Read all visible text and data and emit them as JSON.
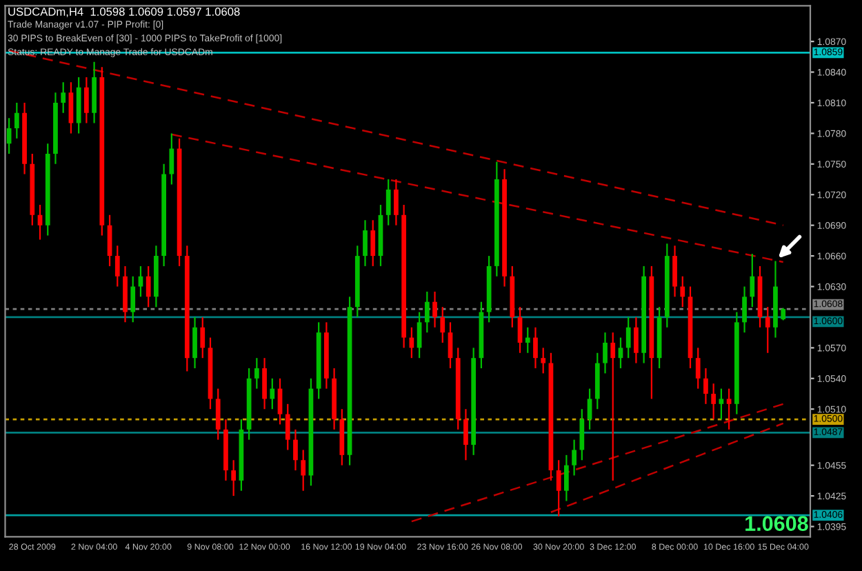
{
  "chart_data": {
    "type": "candlestick",
    "title": "USDCADm,H4  1.0598 1.0609 1.0597 1.0608",
    "annotations": [
      "Trade Manager v1.07 - PIP Profit: [0]",
      "30 PIPS to BreakEven of [30] - 1000 PIPS to TakeProfit of [1000]",
      "Status: READY to Manage Trade for USDCADm",
      "1.0608"
    ],
    "categories": [
      null,
      null,
      null,
      "28 Oct 2009",
      null,
      null,
      null,
      null,
      null,
      null,
      null,
      "2 Nov 04:00",
      null,
      null,
      null,
      null,
      null,
      null,
      "4 Nov 20:00",
      null,
      null,
      null,
      null,
      null,
      null,
      null,
      "9 Nov 08:00",
      null,
      null,
      null,
      null,
      null,
      null,
      "12 Nov 00:00",
      null,
      null,
      null,
      null,
      null,
      null,
      null,
      "16 Nov 12:00",
      null,
      null,
      null,
      null,
      null,
      null,
      "19 Nov 04:00",
      null,
      null,
      null,
      null,
      null,
      null,
      null,
      "23 Nov 16:00",
      null,
      null,
      null,
      null,
      null,
      null,
      "26 Nov 08:00",
      null,
      null,
      null,
      null,
      null,
      null,
      null,
      "30 Nov 20:00",
      null,
      null,
      null,
      null,
      null,
      null,
      "3 Dec 12:00",
      null,
      null,
      null,
      null,
      null,
      null,
      null,
      "8 Dec 00:00",
      null,
      null,
      null,
      null,
      null,
      null,
      "10 Dec 16:00",
      null,
      null,
      null,
      null,
      null,
      null,
      "15 Dec 04:00"
    ],
    "ohlc": [
      [
        1.077,
        1.0795,
        1.076,
        1.0785
      ],
      [
        1.0785,
        1.081,
        1.0775,
        1.08
      ],
      [
        1.08,
        1.081,
        1.074,
        1.075
      ],
      [
        1.075,
        1.076,
        1.069,
        1.07
      ],
      [
        1.07,
        1.071,
        1.0676,
        1.069
      ],
      [
        1.069,
        1.077,
        1.068,
        1.076
      ],
      [
        1.076,
        1.082,
        1.075,
        1.081
      ],
      [
        1.081,
        1.083,
        1.08,
        1.082
      ],
      [
        1.082,
        1.083,
        1.078,
        1.079
      ],
      [
        1.079,
        1.0835,
        1.078,
        1.0825
      ],
      [
        1.0825,
        1.0835,
        1.079,
        1.08
      ],
      [
        1.08,
        1.085,
        1.079,
        1.0835
      ],
      [
        1.0835,
        1.0845,
        1.068,
        1.069
      ],
      [
        1.069,
        1.07,
        1.065,
        1.066
      ],
      [
        1.066,
        1.067,
        1.063,
        1.064
      ],
      [
        1.064,
        1.065,
        1.0595,
        1.0605
      ],
      [
        1.0605,
        1.064,
        1.0595,
        1.063
      ],
      [
        1.063,
        1.065,
        1.062,
        1.064
      ],
      [
        1.064,
        1.065,
        1.061,
        1.062
      ],
      [
        1.062,
        1.067,
        1.061,
        1.066
      ],
      [
        1.066,
        1.075,
        1.065,
        1.074
      ],
      [
        1.074,
        1.078,
        1.073,
        1.0765
      ],
      [
        1.0765,
        1.0775,
        1.065,
        1.066
      ],
      [
        1.066,
        1.067,
        1.0547,
        1.056
      ],
      [
        1.056,
        1.06,
        1.055,
        1.059
      ],
      [
        1.059,
        1.06,
        1.056,
        1.057
      ],
      [
        1.057,
        1.058,
        1.051,
        1.052
      ],
      [
        1.052,
        1.053,
        1.048,
        1.049
      ],
      [
        1.049,
        1.05,
        1.044,
        1.045
      ],
      [
        1.045,
        1.046,
        1.0425,
        1.044
      ],
      [
        1.044,
        1.05,
        1.043,
        1.049
      ],
      [
        1.049,
        1.055,
        1.048,
        1.054
      ],
      [
        1.054,
        1.056,
        1.053,
        1.055
      ],
      [
        1.055,
        1.056,
        1.051,
        1.052
      ],
      [
        1.052,
        1.054,
        1.051,
        1.053
      ],
      [
        1.053,
        1.054,
        1.0495,
        1.0505
      ],
      [
        1.0505,
        1.0515,
        1.047,
        1.048
      ],
      [
        1.048,
        1.049,
        1.045,
        1.046
      ],
      [
        1.046,
        1.047,
        1.043,
        1.0445
      ],
      [
        1.0445,
        1.054,
        1.0435,
        1.053
      ],
      [
        1.053,
        1.0595,
        1.052,
        1.0585
      ],
      [
        1.0585,
        1.0595,
        1.053,
        1.054
      ],
      [
        1.054,
        1.055,
        1.049,
        1.05
      ],
      [
        1.05,
        1.051,
        1.0455,
        1.0465
      ],
      [
        1.0465,
        1.062,
        1.0455,
        1.061
      ],
      [
        1.061,
        1.067,
        1.06,
        1.066
      ],
      [
        1.066,
        1.0695,
        1.065,
        1.0685
      ],
      [
        1.0685,
        1.0695,
        1.065,
        1.066
      ],
      [
        1.066,
        1.071,
        1.065,
        1.07
      ],
      [
        1.07,
        1.0735,
        1.069,
        1.0725
      ],
      [
        1.0725,
        1.0735,
        1.069,
        1.07
      ],
      [
        1.07,
        1.071,
        1.057,
        1.058
      ],
      [
        1.058,
        1.059,
        1.056,
        1.057
      ],
      [
        1.057,
        1.0605,
        1.056,
        1.0595
      ],
      [
        1.0595,
        1.0625,
        1.0585,
        1.0615
      ],
      [
        1.0615,
        1.0625,
        1.059,
        1.06
      ],
      [
        1.06,
        1.061,
        1.0575,
        1.0585
      ],
      [
        1.0585,
        1.0595,
        1.055,
        1.056
      ],
      [
        1.056,
        1.057,
        1.049,
        1.05
      ],
      [
        1.05,
        1.051,
        1.046,
        1.0475
      ],
      [
        1.0475,
        1.057,
        1.0465,
        1.056
      ],
      [
        1.056,
        1.0615,
        1.055,
        1.0605
      ],
      [
        1.0605,
        1.066,
        1.0595,
        1.065
      ],
      [
        1.065,
        1.0752,
        1.064,
        1.0735
      ],
      [
        1.0735,
        1.0745,
        1.063,
        1.064
      ],
      [
        1.064,
        1.065,
        1.059,
        1.06
      ],
      [
        1.06,
        1.061,
        1.0565,
        1.0575
      ],
      [
        1.0575,
        1.059,
        1.0565,
        1.058
      ],
      [
        1.058,
        1.059,
        1.055,
        1.056
      ],
      [
        1.056,
        1.057,
        1.0545,
        1.0555
      ],
      [
        1.0555,
        1.0565,
        1.044,
        1.045
      ],
      [
        1.045,
        1.046,
        1.0405,
        1.043
      ],
      [
        1.043,
        1.0465,
        1.042,
        1.0455
      ],
      [
        1.0455,
        1.048,
        1.0445,
        1.047
      ],
      [
        1.047,
        1.051,
        1.046,
        1.05
      ],
      [
        1.05,
        1.053,
        1.049,
        1.052
      ],
      [
        1.052,
        1.0565,
        1.051,
        1.0555
      ],
      [
        1.0555,
        1.0585,
        1.0545,
        1.0575
      ],
      [
        1.0575,
        1.0585,
        1.044,
        1.056
      ],
      [
        1.056,
        1.058,
        1.055,
        1.057
      ],
      [
        1.057,
        1.06,
        1.056,
        1.059
      ],
      [
        1.059,
        1.06,
        1.0555,
        1.0565
      ],
      [
        1.0565,
        1.065,
        1.0555,
        1.064
      ],
      [
        1.064,
        1.065,
        1.052,
        1.056
      ],
      [
        1.056,
        1.061,
        1.055,
        1.06
      ],
      [
        1.06,
        1.0672,
        1.059,
        1.066
      ],
      [
        1.066,
        1.067,
        1.062,
        1.063
      ],
      [
        1.063,
        1.064,
        1.061,
        1.062
      ],
      [
        1.062,
        1.063,
        1.055,
        1.056
      ],
      [
        1.056,
        1.057,
        1.053,
        1.054
      ],
      [
        1.054,
        1.055,
        1.0515,
        1.0525
      ],
      [
        1.0525,
        1.0535,
        1.05,
        1.0515
      ],
      [
        1.0515,
        1.053,
        1.05,
        1.052
      ],
      [
        1.052,
        1.053,
        1.049,
        1.0515
      ],
      [
        1.0515,
        1.0605,
        1.0505,
        1.0595
      ],
      [
        1.0595,
        1.063,
        1.0585,
        1.062
      ],
      [
        1.062,
        1.0662,
        1.061,
        1.064
      ],
      [
        1.064,
        1.065,
        1.059,
        1.06
      ],
      [
        1.06,
        1.061,
        1.0565,
        1.059
      ],
      [
        1.059,
        1.0655,
        1.058,
        1.063
      ],
      [
        1.0598,
        1.0609,
        1.0597,
        1.0608
      ]
    ],
    "series": [
      {
        "type": "line",
        "color": "#c00000",
        "line_style": "dashed",
        "values": [
          1.0861,
          null,
          null,
          null,
          null,
          null,
          null,
          null,
          null,
          null,
          null,
          null,
          null,
          null,
          null,
          null,
          null,
          null,
          null,
          null,
          null,
          null,
          null,
          null,
          null,
          null,
          null,
          null,
          null,
          null,
          null,
          null,
          null,
          null,
          null,
          null,
          null,
          null,
          null,
          null,
          null,
          null,
          null,
          null,
          null,
          null,
          null,
          null,
          null,
          null,
          null,
          null,
          null,
          null,
          null,
          null,
          null,
          null,
          null,
          null,
          null,
          null,
          null,
          null,
          null,
          null,
          null,
          null,
          null,
          null,
          null,
          null,
          null,
          null,
          null,
          null,
          null,
          null,
          null,
          null,
          null,
          null,
          null,
          null,
          null,
          null,
          null,
          null,
          null,
          null,
          null,
          null,
          null,
          null,
          null,
          null,
          null,
          null,
          null,
          null,
          1.069
        ]
      },
      {
        "type": "line",
        "color": "#c00000",
        "line_style": "dashed",
        "values": [
          null,
          null,
          null,
          null,
          null,
          null,
          null,
          null,
          null,
          null,
          null,
          null,
          null,
          null,
          null,
          null,
          null,
          null,
          null,
          null,
          null,
          1.0779,
          null,
          null,
          null,
          null,
          null,
          null,
          null,
          null,
          null,
          null,
          null,
          null,
          null,
          null,
          null,
          null,
          null,
          null,
          null,
          null,
          null,
          null,
          null,
          null,
          null,
          null,
          null,
          null,
          null,
          null,
          null,
          null,
          null,
          null,
          null,
          null,
          null,
          null,
          null,
          null,
          null,
          null,
          null,
          null,
          null,
          null,
          null,
          null,
          null,
          null,
          null,
          null,
          null,
          null,
          null,
          null,
          null,
          null,
          null,
          null,
          null,
          null,
          null,
          null,
          null,
          null,
          null,
          null,
          null,
          null,
          null,
          null,
          null,
          null,
          null,
          null,
          null,
          null,
          1.0654
        ]
      },
      {
        "type": "line",
        "color": "#c00000",
        "line_style": "dashed",
        "values": [
          null,
          null,
          null,
          null,
          null,
          null,
          null,
          null,
          null,
          null,
          null,
          null,
          null,
          null,
          null,
          null,
          null,
          null,
          null,
          null,
          null,
          null,
          null,
          null,
          null,
          null,
          null,
          null,
          null,
          null,
          null,
          null,
          null,
          null,
          null,
          null,
          null,
          null,
          null,
          null,
          null,
          null,
          null,
          null,
          null,
          null,
          null,
          null,
          null,
          null,
          null,
          null,
          1.04,
          null,
          null,
          null,
          null,
          null,
          null,
          null,
          null,
          null,
          null,
          null,
          null,
          null,
          null,
          null,
          null,
          null,
          null,
          null,
          null,
          null,
          null,
          null,
          null,
          null,
          null,
          null,
          null,
          null,
          null,
          null,
          null,
          null,
          null,
          null,
          null,
          null,
          null,
          null,
          null,
          null,
          null,
          null,
          null,
          null,
          null,
          null,
          1.0515
        ]
      },
      {
        "type": "line",
        "color": "#c00000",
        "line_style": "dashed",
        "values": [
          null,
          null,
          null,
          null,
          null,
          null,
          null,
          null,
          null,
          null,
          null,
          null,
          null,
          null,
          null,
          null,
          null,
          null,
          null,
          null,
          null,
          null,
          null,
          null,
          null,
          null,
          null,
          null,
          null,
          null,
          null,
          null,
          null,
          null,
          null,
          null,
          null,
          null,
          null,
          null,
          null,
          null,
          null,
          null,
          null,
          null,
          null,
          null,
          null,
          null,
          null,
          null,
          null,
          null,
          null,
          null,
          null,
          null,
          null,
          null,
          null,
          null,
          null,
          null,
          null,
          null,
          null,
          null,
          null,
          null,
          1.0409,
          null,
          null,
          null,
          null,
          null,
          null,
          null,
          null,
          null,
          null,
          null,
          null,
          null,
          null,
          null,
          null,
          null,
          null,
          null,
          null,
          null,
          null,
          null,
          null,
          null,
          null,
          null,
          null,
          null,
          1.0496
        ]
      }
    ],
    "ref_lines": [
      {
        "axis": "y",
        "value": 1.0859,
        "label": "1.0859",
        "color": "#00c0c0",
        "line_style": "solid"
      },
      {
        "axis": "y",
        "value": 1.0608,
        "label": "1.0608",
        "color": "#808080",
        "line_style": "dotted"
      },
      {
        "axis": "y",
        "value": 1.06,
        "label": "1.0600",
        "color": "#008080",
        "line_style": "solid"
      },
      {
        "axis": "y",
        "value": 1.05,
        "label": "1.0500",
        "color": "#c8a000",
        "line_style": "dotted"
      },
      {
        "axis": "y",
        "value": 1.0487,
        "label": "1.0487",
        "color": "#008080",
        "line_style": "solid"
      },
      {
        "axis": "y",
        "value": 1.0406,
        "label": "1.0406",
        "color": "#00a0a0",
        "line_style": "solid"
      }
    ],
    "ylim": [
      1.0385,
      1.0905
    ],
    "yticks": [
      {
        "value": 1.087,
        "label": "1.0870"
      },
      {
        "value": 1.084,
        "label": "1.0840"
      },
      {
        "value": 1.081,
        "label": "1.0810"
      },
      {
        "value": 1.078,
        "label": "1.0780"
      },
      {
        "value": 1.075,
        "label": "1.0750"
      },
      {
        "value": 1.072,
        "label": "1.0720"
      },
      {
        "value": 1.069,
        "label": "1.0690"
      },
      {
        "value": 1.066,
        "label": "1.0660"
      },
      {
        "value": 1.063,
        "label": "1.0630"
      },
      {
        "value": 1.057,
        "label": "1.0570"
      },
      {
        "value": 1.054,
        "label": "1.0540"
      },
      {
        "value": 1.051,
        "label": "1.0510"
      },
      1.0455,
      1.0425,
      1.0395
    ],
    "grid": false,
    "legend": false
  }
}
